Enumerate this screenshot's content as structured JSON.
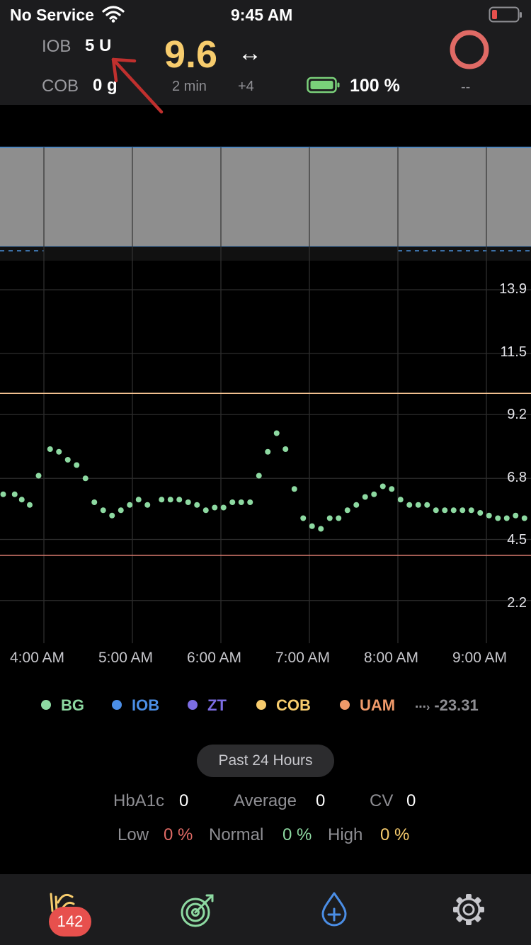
{
  "status_bar": {
    "carrier": "No Service",
    "time": "9:45 AM"
  },
  "header": {
    "iob_label": "IOB",
    "iob_value": "5 U",
    "cob_label": "COB",
    "cob_value": "0 g",
    "bg_value": "9.6",
    "bg_age": "2 min",
    "trend_arrow": "↔",
    "delta": "+4",
    "battery_pct": "100 %",
    "loop_status": "--",
    "colors": {
      "bg": "#f7cc6d",
      "loop_ring": "#e06a65",
      "battery": "#7ad07a"
    }
  },
  "chart_data": {
    "type": "scatter",
    "x_ticks": [
      "4:00 AM",
      "5:00 AM",
      "6:00 AM",
      "7:00 AM",
      "8:00 AM",
      "9:00 AM"
    ],
    "y_ticks": [
      "13.9",
      "11.5",
      "9.2",
      "6.8",
      "4.5",
      "2.2"
    ],
    "target_high": 10.0,
    "target_low": 3.9,
    "series": [
      {
        "color": "#8dd9a1",
        "x_hours": [
          3.54,
          3.67,
          3.75,
          3.84,
          3.94,
          4.07,
          4.17,
          4.27,
          4.37,
          4.47,
          4.57,
          4.67,
          4.77,
          4.87,
          4.97,
          5.07,
          5.17,
          5.33,
          5.43,
          5.53,
          5.63,
          5.73,
          5.83,
          5.93,
          6.03,
          6.13,
          6.23,
          6.33,
          6.43,
          6.53,
          6.63,
          6.73,
          6.83,
          6.93,
          7.03,
          7.13,
          7.23,
          7.33,
          7.43,
          7.53,
          7.63,
          7.73,
          7.83,
          7.93,
          8.03,
          8.13,
          8.23,
          8.33,
          8.43,
          8.53,
          8.63,
          8.73,
          8.83,
          8.93,
          9.03,
          9.13,
          9.23,
          9.33,
          9.43
        ],
        "y_values": [
          6.2,
          6.2,
          6.0,
          5.8,
          6.9,
          7.9,
          7.8,
          7.5,
          7.3,
          6.8,
          5.9,
          5.6,
          5.4,
          5.6,
          5.8,
          6.0,
          5.8,
          6.0,
          6.0,
          6.0,
          5.9,
          5.8,
          5.6,
          5.7,
          5.7,
          5.9,
          5.9,
          5.9,
          6.9,
          7.8,
          8.5,
          7.9,
          6.4,
          5.3,
          5.0,
          4.9,
          5.3,
          5.3,
          5.6,
          5.8,
          6.1,
          6.2,
          6.5,
          6.4,
          6.0,
          5.8,
          5.8,
          5.8,
          5.6,
          5.6,
          5.6,
          5.6,
          5.6,
          5.5,
          5.4,
          5.3,
          5.3,
          5.4,
          5.3
        ]
      }
    ]
  },
  "legend": {
    "bg": "BG",
    "iob": "IOB",
    "zt": "ZT",
    "cob": "COB",
    "uam": "UAM",
    "value": "-23.31"
  },
  "stats": {
    "range_button": "Past 24 Hours",
    "hba1c_label": "HbA1c",
    "hba1c_value": "0",
    "average_label": "Average",
    "average_value": "0",
    "cv_label": "CV",
    "cv_value": "0",
    "low_label": "Low",
    "low_value": "0 %",
    "normal_label": "Normal",
    "normal_value": "0 %",
    "high_label": "High",
    "high_value": "0 %"
  },
  "tabbar": {
    "badge": "142"
  }
}
